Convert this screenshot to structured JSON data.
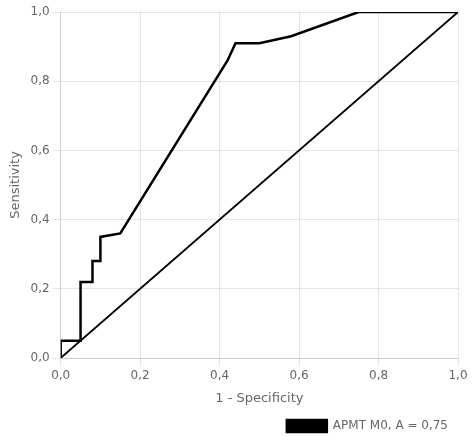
{
  "chart_data": {
    "type": "line",
    "xlabel": "1 - Specificity",
    "ylabel": "Sensitivity",
    "series": [
      {
        "color": "#000000",
        "x": [
          0.0,
          1.0
        ],
        "values": [
          0.0,
          1.0
        ]
      },
      {
        "name": "APMT M0, A = 0,75",
        "color": "#000000",
        "x": [
          0.0,
          0.0,
          0.05,
          0.05,
          0.08,
          0.08,
          0.1,
          0.1,
          0.15,
          0.42,
          0.44,
          0.5,
          0.58,
          0.75,
          1.0
        ],
        "values": [
          0.0,
          0.05,
          0.05,
          0.22,
          0.22,
          0.28,
          0.28,
          0.35,
          0.36,
          0.86,
          0.91,
          0.91,
          0.93,
          1.0,
          1.0
        ]
      }
    ],
    "xlim": [
      0.0,
      1.0
    ],
    "ylim": [
      0.0,
      1.0
    ],
    "xticks": [
      {
        "value": 0.0,
        "label": "0,0"
      },
      {
        "value": 0.2,
        "label": "0,2"
      },
      {
        "value": 0.4,
        "label": "0,4"
      },
      {
        "value": 0.6,
        "label": "0,6"
      },
      {
        "value": 0.8,
        "label": "0,8"
      },
      {
        "value": 1.0,
        "label": "1,0"
      }
    ],
    "yticks": [
      {
        "value": 0.0,
        "label": "0,0"
      },
      {
        "value": 0.2,
        "label": "0,2"
      },
      {
        "value": 0.4,
        "label": "0,4"
      },
      {
        "value": 0.6,
        "label": "0,6"
      },
      {
        "value": 0.8,
        "label": "0,8"
      },
      {
        "value": 1.0,
        "label": "1,0"
      }
    ],
    "grid": true,
    "legend": "lower right"
  }
}
